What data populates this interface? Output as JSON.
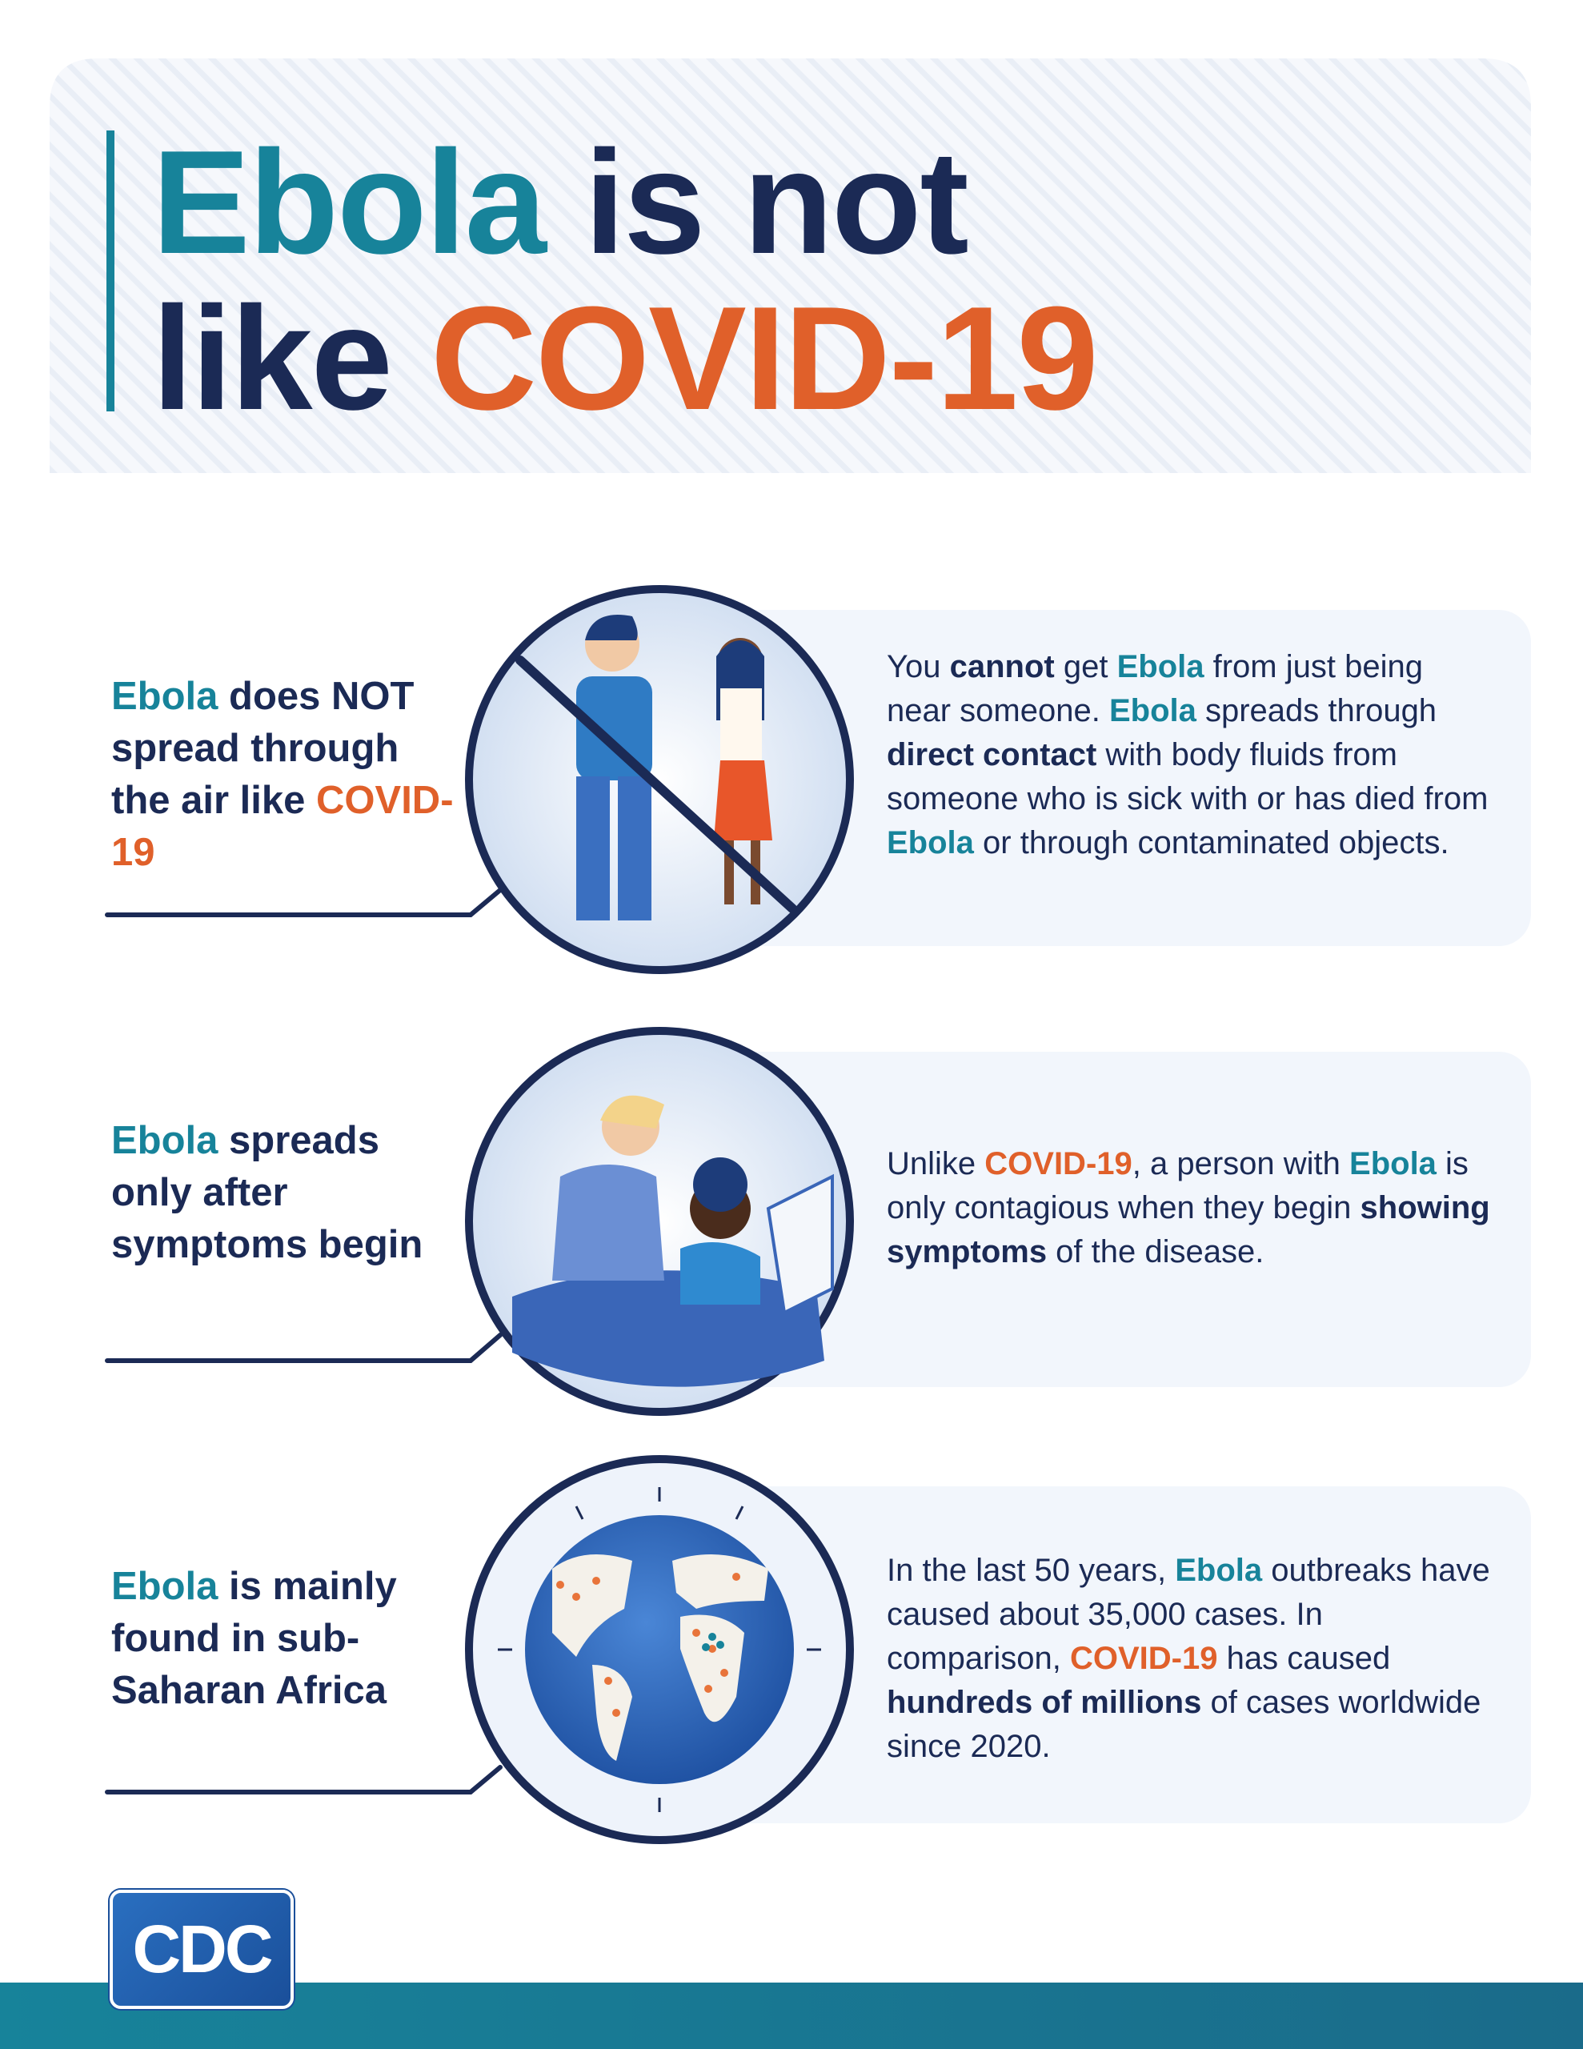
{
  "header": {
    "title": [
      [
        {
          "text": "Ebola",
          "color": "#17839a"
        },
        {
          "text": " is not",
          "color": "#1b2a55"
        }
      ],
      [
        {
          "text": "like ",
          "color": "#1b2a55"
        },
        {
          "text": "COVID-19",
          "color": "#e0602a"
        }
      ]
    ]
  },
  "rows": [
    {
      "heading": [
        {
          "text": "Ebola",
          "color": "#17839a"
        },
        {
          "text": " does NOT spread through the air like ",
          "color": "#1b2a55"
        },
        {
          "text": "COVID-19",
          "color": "#e0602a"
        }
      ],
      "body": [
        {
          "text": "You "
        },
        {
          "text": "cannot",
          "bold": true
        },
        {
          "text": " get "
        },
        {
          "text": "Ebola",
          "bold": true,
          "color": "#17839a"
        },
        {
          "text": " from just being near someone. "
        },
        {
          "text": "Ebola",
          "bold": true,
          "color": "#17839a"
        },
        {
          "text": " spreads through "
        },
        {
          "text": "direct contact",
          "bold": true
        },
        {
          "text": " with body fluids from someone who is sick with or has died from "
        },
        {
          "text": "Ebola",
          "bold": true,
          "color": "#17839a"
        },
        {
          "text": " or through contaminated objects."
        }
      ]
    },
    {
      "heading": [
        {
          "text": "Ebola",
          "color": "#17839a"
        },
        {
          "text": " spreads only after symptoms begin",
          "color": "#1b2a55"
        }
      ],
      "body": [
        {
          "text": "Unlike "
        },
        {
          "text": "COVID-19",
          "bold": true,
          "color": "#e0602a"
        },
        {
          "text": ", a person with "
        },
        {
          "text": "Ebola",
          "bold": true,
          "color": "#17839a"
        },
        {
          "text": " is only contagious when they begin "
        },
        {
          "text": "showing symptoms",
          "bold": true
        },
        {
          "text": " of the disease."
        }
      ]
    },
    {
      "heading": [
        {
          "text": "Ebola",
          "color": "#17839a"
        },
        {
          "text": " is mainly found in sub-Saharan Africa",
          "color": "#1b2a55"
        }
      ],
      "body": [
        {
          "text": "In the last 50 years, "
        },
        {
          "text": "Ebola",
          "bold": true,
          "color": "#17839a"
        },
        {
          "text": " outbreaks have caused about 35,000 cases. In comparison, "
        },
        {
          "text": "COVID-19",
          "bold": true,
          "color": "#e0602a"
        },
        {
          "text": " has caused "
        },
        {
          "text": "hundreds of millions",
          "bold": true
        },
        {
          "text": " of cases worldwide since 2020."
        }
      ]
    }
  ],
  "footer": {
    "logo": "CDC"
  }
}
